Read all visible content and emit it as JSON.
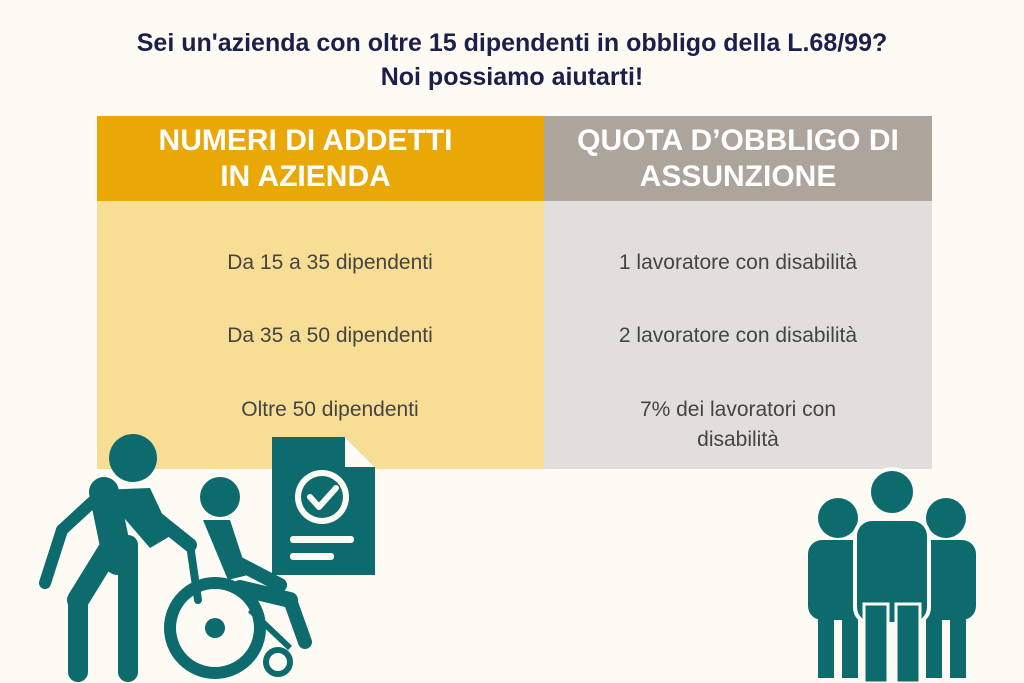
{
  "headline": {
    "line1": "Sei un'azienda con oltre 15 dipendenti in obbligo della L.68/99?",
    "line2": "Noi possiamo aiutarti!"
  },
  "table": {
    "header_left": "NUMERI DI ADDETTI IN AZIENDA",
    "header_right": "QUOTA D’OBBLIGO DI ASSUNZIONE",
    "rows": [
      {
        "employees": "Da 15 a 35 dipendenti",
        "quota": "1 lavoratore con disabilità"
      },
      {
        "employees": "Da 35 a 50 dipendenti",
        "quota": "2 lavoratore con disabilità"
      },
      {
        "employees": "Oltre 50 dipendenti",
        "quota": "7% dei lavoratori con disabilità"
      }
    ]
  },
  "colors": {
    "header_left": "#e9a806",
    "header_right": "#ada49b",
    "body_left": "#f7de94",
    "body_right": "#e2dedc",
    "icon": "#0d6b6d",
    "title": "#1b1f4a",
    "background": "#fdfbf4"
  },
  "icons": [
    "wheelchair-assistance-icon",
    "certified-document-icon",
    "group-of-people-icon"
  ]
}
